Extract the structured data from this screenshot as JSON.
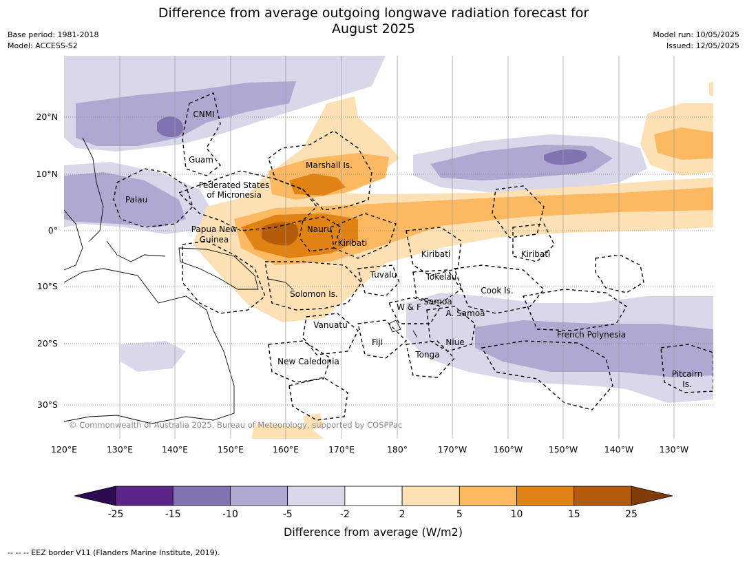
{
  "title": {
    "line1": "Difference from average outgoing longwave radiation forecast for",
    "line2": "August 2025"
  },
  "meta": {
    "base_period": "Base period: 1981-2018",
    "model": "Model: ACCESS-S2",
    "model_run": "Model run: 10/05/2025",
    "issued": "Issued: 12/05/2025"
  },
  "map": {
    "longitude_labels": [
      "120°E",
      "130°E",
      "140°E",
      "150°E",
      "160°E",
      "170°E",
      "180°",
      "170°W",
      "160°W",
      "150°W",
      "140°W",
      "130°W"
    ],
    "latitude_labels": [
      "20°N",
      "10°N",
      "0°",
      "10°S",
      "20°S",
      "30°S"
    ],
    "copyright": "© Commonwealth of Australia 2025, Bureau of Meteorology, supported by COSPPac",
    "places": [
      {
        "name": "CNMI"
      },
      {
        "name": "Guam"
      },
      {
        "name": "Marshall Is."
      },
      {
        "name": "Federated States"
      },
      {
        "name": "of Micronesia"
      },
      {
        "name": "Palau"
      },
      {
        "name": "Papua New"
      },
      {
        "name": "Guinea"
      },
      {
        "name": "Nauru"
      },
      {
        "name": "Kiribati"
      },
      {
        "name": "Kiribati"
      },
      {
        "name": "Kiribati"
      },
      {
        "name": "Tuvalu"
      },
      {
        "name": "Tokelau"
      },
      {
        "name": "Cook Is."
      },
      {
        "name": "Solomon Is."
      },
      {
        "name": "W & F"
      },
      {
        "name": "Samoa"
      },
      {
        "name": "A. Samoa"
      },
      {
        "name": "Vanuatu"
      },
      {
        "name": "Fiji"
      },
      {
        "name": "Niue"
      },
      {
        "name": "French Polynesia"
      },
      {
        "name": "Tonga"
      },
      {
        "name": "New Caledonia"
      },
      {
        "name": "Pitcairn"
      },
      {
        "name": "Is."
      }
    ]
  },
  "colorbar": {
    "label": "Difference from average (W/m2)",
    "ticks": [
      "-25",
      "-15",
      "-10",
      "-5",
      "-2",
      "2",
      "5",
      "10",
      "15",
      "25"
    ],
    "colors": [
      "#5b2688",
      "#8272b2",
      "#afa8d1",
      "#d8d8ea",
      "#ffffff",
      "#fde0b4",
      "#fdb862",
      "#e08214",
      "#b45c0a"
    ],
    "under_color": "#2e0b50",
    "over_color": "#7f3b08"
  },
  "footer": "-- -- -- EEZ border V11 (Flanders Marine Institute, 2019)."
}
